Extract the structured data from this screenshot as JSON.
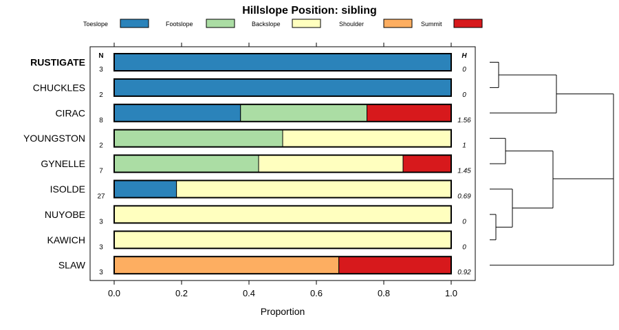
{
  "chart_data": {
    "type": "bar",
    "subtype": "stacked-horizontal-proportion",
    "title": "Hillslope Position: sibling",
    "xlabel": "Proportion",
    "ylabel": "",
    "xlim": [
      0,
      1
    ],
    "xticks": [
      "0.0",
      "0.2",
      "0.4",
      "0.6",
      "0.8",
      "1.0"
    ],
    "legend": {
      "placement": "top",
      "items": [
        {
          "name": "Toeslope",
          "color": "#2b83ba"
        },
        {
          "name": "Footslope",
          "color": "#abdda4"
        },
        {
          "name": "Backslope",
          "color": "#ffffbf"
        },
        {
          "name": "Shoulder",
          "color": "#fdae61"
        },
        {
          "name": "Summit",
          "color": "#d7191c"
        }
      ]
    },
    "n_header": "N",
    "h_header": "H",
    "categories": [
      "RUSTIGATE",
      "CHUCKLES",
      "CIRAC",
      "YOUNGSTON",
      "GYNELLE",
      "ISOLDE",
      "NUYOBE",
      "KAWICH",
      "SLAW"
    ],
    "highlight": "RUSTIGATE",
    "n_values": [
      "3",
      "2",
      "8",
      "2",
      "7",
      "27",
      "3",
      "3",
      "3"
    ],
    "h_values": [
      "0",
      "0",
      "1.56",
      "1",
      "1.45",
      "0.69",
      "0",
      "0",
      "0.92"
    ],
    "series": [
      {
        "name": "Toeslope",
        "values": [
          1.0,
          1.0,
          0.375,
          0.0,
          0.0,
          0.185,
          0.0,
          0.0,
          0.0
        ]
      },
      {
        "name": "Footslope",
        "values": [
          0.0,
          0.0,
          0.375,
          0.5,
          0.4286,
          0.0,
          0.0,
          0.0,
          0.0
        ]
      },
      {
        "name": "Backslope",
        "values": [
          0.0,
          0.0,
          0.0,
          0.5,
          0.4286,
          0.815,
          1.0,
          1.0,
          0.0
        ]
      },
      {
        "name": "Shoulder",
        "values": [
          0.0,
          0.0,
          0.0,
          0.0,
          0.0,
          0.0,
          0.0,
          0.0,
          0.6667
        ]
      },
      {
        "name": "Summit",
        "values": [
          0.0,
          0.0,
          0.25,
          0.0,
          0.1428,
          0.0,
          0.0,
          0.0,
          0.3333
        ]
      }
    ],
    "dendrogram": {
      "description": "hierarchical clustering of rows",
      "merges": [
        [
          "RUSTIGATE",
          "CHUCKLES"
        ],
        [
          "YOUNGSTON",
          "GYNELLE"
        ],
        [
          "NUYOBE",
          "KAWICH"
        ],
        [
          "ISOLDE",
          "NUYOBE+KAWICH"
        ],
        [
          "CIRAC",
          "RUSTIGATE+CHUCKLES"
        ],
        [
          "YOUNGSTON+GYNELLE",
          "ISOLDE+NUYOBE+KAWICH"
        ],
        [
          "CIRAC+RUSTIGATE+CHUCKLES",
          "YOUNGSTON+GYNELLE+ISOLDE+NUYOBE+KAWICH"
        ],
        [
          "SLAW",
          "ALL_OTHERS"
        ]
      ]
    }
  }
}
